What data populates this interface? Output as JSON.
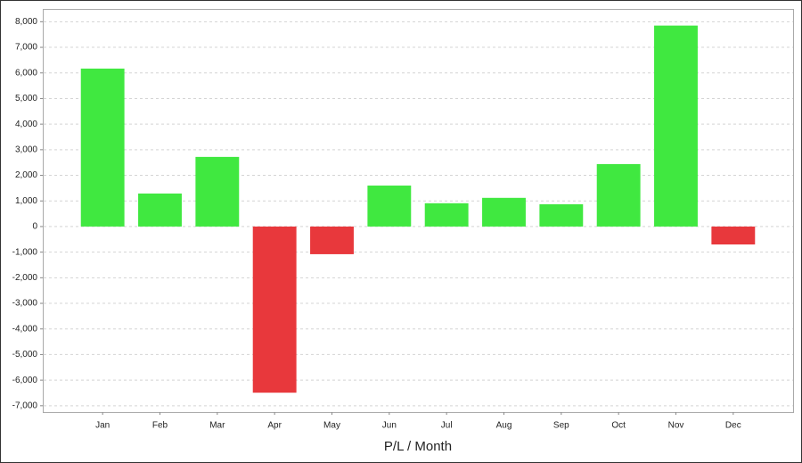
{
  "chart_data": {
    "type": "bar",
    "x_label": "P/L / Month",
    "categories": [
      "Jan",
      "Feb",
      "Mar",
      "Apr",
      "May",
      "Jun",
      "Jul",
      "Aug",
      "Sep",
      "Oct",
      "Nov",
      "Dec"
    ],
    "values": [
      6170,
      1290,
      2720,
      -6490,
      -1080,
      1600,
      910,
      1120,
      870,
      2440,
      7850,
      -700
    ],
    "positive_color": "#40e840",
    "negative_color": "#e8383c",
    "ylim": [
      -7250,
      8500
    ],
    "yticks": [
      {
        "value": -7000,
        "label": "-7,000"
      },
      {
        "value": -6000,
        "label": "-6,000"
      },
      {
        "value": -5000,
        "label": "-5,000"
      },
      {
        "value": -4000,
        "label": "-4,000"
      },
      {
        "value": -3000,
        "label": "-3,000"
      },
      {
        "value": -2000,
        "label": "-2,000"
      },
      {
        "value": -1000,
        "label": "-1,000"
      },
      0,
      {
        "value": 1000,
        "label": "1,000"
      },
      {
        "value": 2000,
        "label": "2,000"
      },
      {
        "value": 3000,
        "label": "3,000"
      },
      {
        "value": 4000,
        "label": "4,000"
      },
      {
        "value": 5000,
        "label": "5,000"
      },
      {
        "value": 6000,
        "label": "6,000"
      },
      {
        "value": 7000,
        "label": "7,000"
      },
      {
        "value": 8000,
        "label": "8,000"
      }
    ],
    "grid": true
  }
}
